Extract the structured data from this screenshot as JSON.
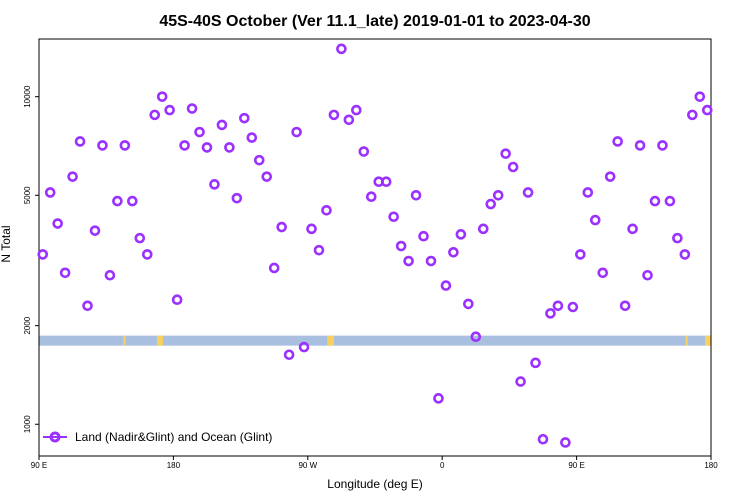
{
  "chart_data": {
    "type": "scatter",
    "title": "45S-40S October (Ver 11.1_late)   2019-01-01 to 2023-04-30",
    "xlabel": "Longitude (deg E)",
    "ylabel": "N Total",
    "x_ticks": [
      {
        "value": 90,
        "label": "90 E"
      },
      {
        "value": 180,
        "label": "180"
      },
      {
        "value": 270,
        "label": "90 W"
      },
      {
        "value": 360,
        "label": "0"
      },
      {
        "value": 450,
        "label": "90 E"
      },
      {
        "value": 540,
        "label": "180"
      }
    ],
    "xlim": [
      90,
      540
    ],
    "y_scale": "log",
    "ylim": [
      800,
      15000
    ],
    "y_ticks": [
      1000,
      2000,
      5000,
      10000
    ],
    "grid": false,
    "legend": {
      "position": "bottom-left",
      "entries": [
        "Land (Nadir&Glint) and Ocean (Glint)"
      ]
    },
    "series": [
      {
        "name": "Land (Nadir&Glint) and Ocean (Glint)",
        "color": "#9b30ff",
        "x": [
          92.5,
          97.5,
          102.5,
          107.5,
          112.5,
          117.5,
          122.5,
          127.5,
          132.5,
          137.5,
          142.5,
          147.5,
          152.5,
          157.5,
          162.5,
          167.5,
          172.5,
          177.5,
          182.5,
          187.5,
          192.5,
          197.5,
          202.5,
          207.5,
          212.5,
          217.5,
          222.5,
          227.5,
          232.5,
          237.5,
          242.5,
          247.5,
          252.5,
          257.5,
          262.5,
          267.5,
          272.5,
          277.5,
          282.5,
          287.5,
          292.5,
          297.5,
          302.5,
          307.5,
          312.5,
          317.5,
          322.5,
          327.5,
          332.5,
          337.5,
          342.5,
          347.5,
          352.5,
          357.5,
          362.5,
          367.5,
          372.5,
          377.5,
          382.5,
          387.5,
          392.5,
          397.5,
          402.5,
          407.5,
          412.5,
          417.5,
          422.5,
          427.5,
          432.5,
          437.5,
          442.5,
          447.5,
          452.5,
          457.5,
          462.5,
          467.5,
          472.5,
          477.5,
          482.5,
          487.5,
          492.5,
          497.5,
          502.5,
          507.5,
          512.5,
          517.5,
          522.5,
          527.5,
          532.5,
          537.5
        ],
        "y": [
          3300,
          5100,
          4100,
          2900,
          5700,
          7300,
          2300,
          3900,
          7100,
          2850,
          4800,
          7100,
          4800,
          3700,
          3300,
          8800,
          10000,
          9100,
          2400,
          7100,
          9200,
          7800,
          7000,
          5400,
          8200,
          7000,
          4900,
          8600,
          7500,
          6400,
          5700,
          3000,
          4000,
          1630,
          7800,
          1720,
          3950,
          3400,
          4500,
          8800,
          14000,
          8500,
          9100,
          6800,
          4950,
          5500,
          5500,
          4300,
          3500,
          3150,
          5000,
          3750,
          3150,
          1200,
          2650,
          3350,
          3800,
          2330,
          1850,
          3950,
          4700,
          5000,
          6700,
          6100,
          1350,
          5100,
          1540,
          900,
          2180,
          2300,
          880,
          2280,
          3300,
          5100,
          4200,
          2900,
          5700,
          7300,
          2300,
          3950,
          7100,
          2850,
          4800,
          7100,
          4800,
          3700,
          3300,
          8800,
          10000,
          9100
        ]
      }
    ],
    "land_band": {
      "y_value": 1800,
      "ocean_color": "#a8bfe0",
      "land_color": "#f8d060",
      "land_segments": [
        [
          146.5,
          148
        ],
        [
          169,
          173
        ],
        [
          283,
          287.5
        ],
        [
          523,
          524.5
        ],
        [
          536,
          540
        ]
      ]
    }
  }
}
